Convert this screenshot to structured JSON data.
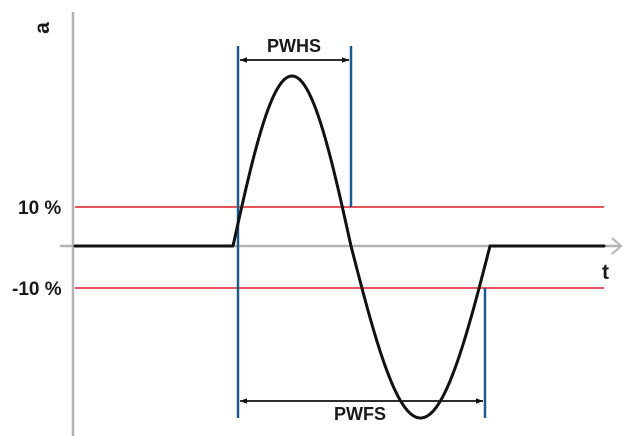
{
  "labels": {
    "y_axis": "a",
    "x_axis": "t",
    "pos_threshold": "10 %",
    "neg_threshold": "-10 %",
    "half_sine_width": "PWHS",
    "full_sine_width": "PWFS"
  },
  "colors": {
    "axis": "#b3b3b3",
    "threshold": "#e8545a",
    "marker": "#1f5a8c",
    "waveform": "#111111",
    "text": "#1a1a1a"
  }
}
